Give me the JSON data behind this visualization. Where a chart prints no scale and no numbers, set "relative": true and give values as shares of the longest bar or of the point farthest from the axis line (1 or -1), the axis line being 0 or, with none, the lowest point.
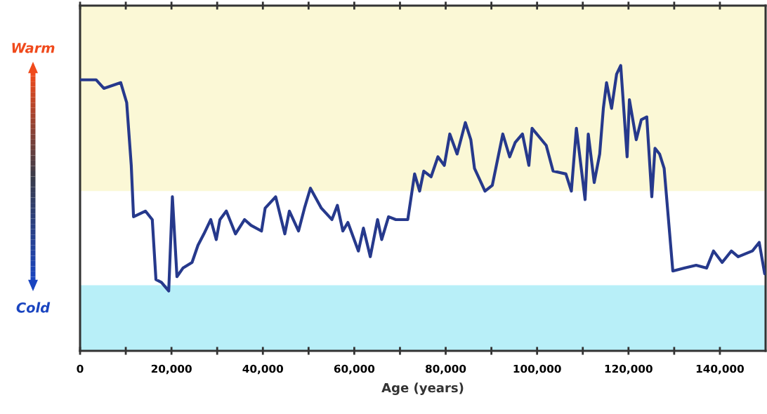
{
  "chart_data": {
    "type": "line",
    "relative": true,
    "xlabel": "Age (years)",
    "annotations": [
      "Warm",
      "Cold"
    ],
    "xlim": [
      0,
      150000
    ],
    "xticks": [
      0,
      {
        "value": 10000,
        "label": null
      },
      {
        "value": 20000,
        "label": "20,000"
      },
      {
        "value": 30000,
        "label": null
      },
      {
        "value": 40000,
        "label": "40,000"
      },
      {
        "value": 50000,
        "label": null
      },
      {
        "value": 60000,
        "label": "60,000"
      },
      {
        "value": 70000,
        "label": null
      },
      {
        "value": 80000,
        "label": "80,000"
      },
      {
        "value": 90000,
        "label": null
      },
      {
        "value": 100000,
        "label": "100,000"
      },
      {
        "value": 110000,
        "label": null
      },
      {
        "value": 120000,
        "label": "120,000"
      },
      {
        "value": 130000,
        "label": null
      },
      {
        "value": 140000,
        "label": "140,000"
      }
    ],
    "tick_labels": "x",
    "grid": false,
    "bands": [
      {
        "axis": "y",
        "from": 0.56,
        "to": 1.21,
        "color": "#fbf8d6"
      },
      {
        "axis": "y",
        "from": 0,
        "to": 0.23,
        "color": "#b8eff8"
      }
    ],
    "series": [
      {
        "color": "#26398c",
        "x": [
          0,
          3500,
          5200,
          8900,
          10200,
          11200,
          11700,
          14300,
          15800,
          16600,
          17800,
          19400,
          20200,
          21200,
          22500,
          24500,
          25800,
          27100,
          28600,
          29800,
          30600,
          32000,
          34000,
          36000,
          37400,
          39700,
          40500,
          42800,
          44800,
          45800,
          47800,
          49100,
          50400,
          52800,
          55100,
          56300,
          57500,
          58600,
          60900,
          62000,
          63500,
          65100,
          66000,
          67500,
          69100,
          71700,
          73200,
          74300,
          75200,
          76800,
          78300,
          79700,
          80900,
          82500,
          84300,
          85500,
          86300,
          88600,
          90200,
          92500,
          94000,
          95200,
          96800,
          98200,
          98900,
          102000,
          103500,
          106300,
          107500,
          108600,
          110500,
          111200,
          112500,
          113700,
          114500,
          115200,
          116300,
          117400,
          118300,
          119700,
          120200,
          121700,
          122800,
          124000,
          125100,
          125800,
          126800,
          127800,
          129700,
          132200,
          134800,
          137100,
          138600,
          140500,
          142500,
          144000,
          147100,
          148600,
          149800
        ],
        "values": [
          0.95,
          0.95,
          0.92,
          0.94,
          0.87,
          0.65,
          0.47,
          0.49,
          0.46,
          0.25,
          0.24,
          0.21,
          0.54,
          0.26,
          0.29,
          0.31,
          0.37,
          0.41,
          0.46,
          0.39,
          0.46,
          0.49,
          0.41,
          0.46,
          0.44,
          0.42,
          0.5,
          0.54,
          0.41,
          0.49,
          0.42,
          0.5,
          0.57,
          0.5,
          0.46,
          0.51,
          0.42,
          0.45,
          0.35,
          0.43,
          0.33,
          0.46,
          0.39,
          0.47,
          0.46,
          0.46,
          0.62,
          0.56,
          0.63,
          0.61,
          0.68,
          0.65,
          0.76,
          0.69,
          0.8,
          0.74,
          0.64,
          0.56,
          0.58,
          0.76,
          0.68,
          0.73,
          0.76,
          0.65,
          0.78,
          0.72,
          0.63,
          0.62,
          0.56,
          0.78,
          0.53,
          0.76,
          0.59,
          0.69,
          0.85,
          0.94,
          0.85,
          0.97,
          1.0,
          0.68,
          0.88,
          0.74,
          0.81,
          0.82,
          0.54,
          0.71,
          0.69,
          0.64,
          0.28,
          0.29,
          0.3,
          0.29,
          0.35,
          0.31,
          0.35,
          0.33,
          0.35,
          0.38,
          0.27
        ]
      }
    ]
  }
}
